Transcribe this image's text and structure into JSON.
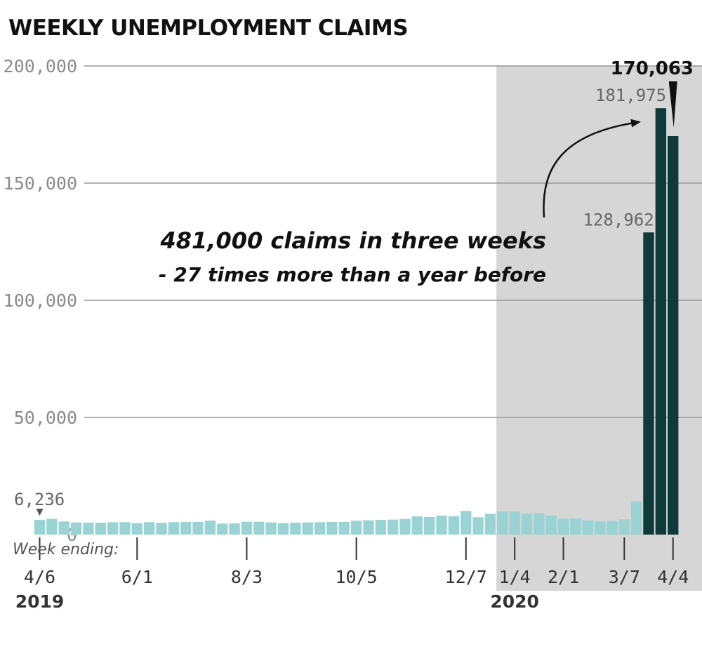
{
  "chart_data": {
    "type": "bar",
    "title": "WEEKLY UNEMPLOYMENT CLAIMS",
    "xlabel": "Week ending:",
    "ylabel": "",
    "ylim": [
      0,
      200000
    ],
    "yticks": [
      0,
      50000,
      100000,
      150000,
      200000
    ],
    "ytick_labels": [
      "0",
      "50,000",
      "100,000",
      "150,000",
      "200,000"
    ],
    "xtick_labels": [
      {
        "label": "4/6",
        "index": 0
      },
      {
        "label": "6/1",
        "index": 8
      },
      {
        "label": "8/3",
        "index": 17
      },
      {
        "label": "10/5",
        "index": 26
      },
      {
        "label": "12/7",
        "index": 35
      },
      {
        "label": "1/4",
        "index": 39
      },
      {
        "label": "2/1",
        "index": 43
      },
      {
        "label": "3/7",
        "index": 48
      },
      {
        "label": "4/4",
        "index": 52
      }
    ],
    "year_labels": [
      {
        "label": "2019",
        "index": 0
      },
      {
        "label": "2020",
        "index": 39
      }
    ],
    "highlight_start_index": 38,
    "grid": true,
    "values": [
      6236,
      6700,
      5600,
      5200,
      5100,
      5100,
      5300,
      5300,
      4900,
      5300,
      5000,
      5300,
      5400,
      5400,
      6000,
      4700,
      4800,
      5500,
      5500,
      5200,
      4900,
      5100,
      5200,
      5300,
      5400,
      5400,
      5900,
      6100,
      6300,
      6400,
      6700,
      7800,
      7500,
      8100,
      7900,
      10100,
      7400,
      8900,
      9900,
      9800,
      9000,
      9100,
      8100,
      6800,
      6900,
      6100,
      5600,
      5800,
      6500,
      14200,
      128962,
      181975,
      170063
    ],
    "surge_start_index": 50,
    "colors": {
      "normal_bar": "#9ad3d3",
      "highlight_region": "#d6d6d6",
      "surge_bar": "#0e3b3a",
      "grid": "#999999"
    },
    "data_labels": [
      {
        "index": 0,
        "text": "6,236"
      },
      {
        "index": 50,
        "text": "128,962"
      },
      {
        "index": 51,
        "text": "181,975"
      },
      {
        "index": 52,
        "text": "170,063"
      }
    ],
    "annotation": {
      "line1": "481,000 claims in three weeks",
      "line2": "- 27 times more than a year before"
    }
  }
}
